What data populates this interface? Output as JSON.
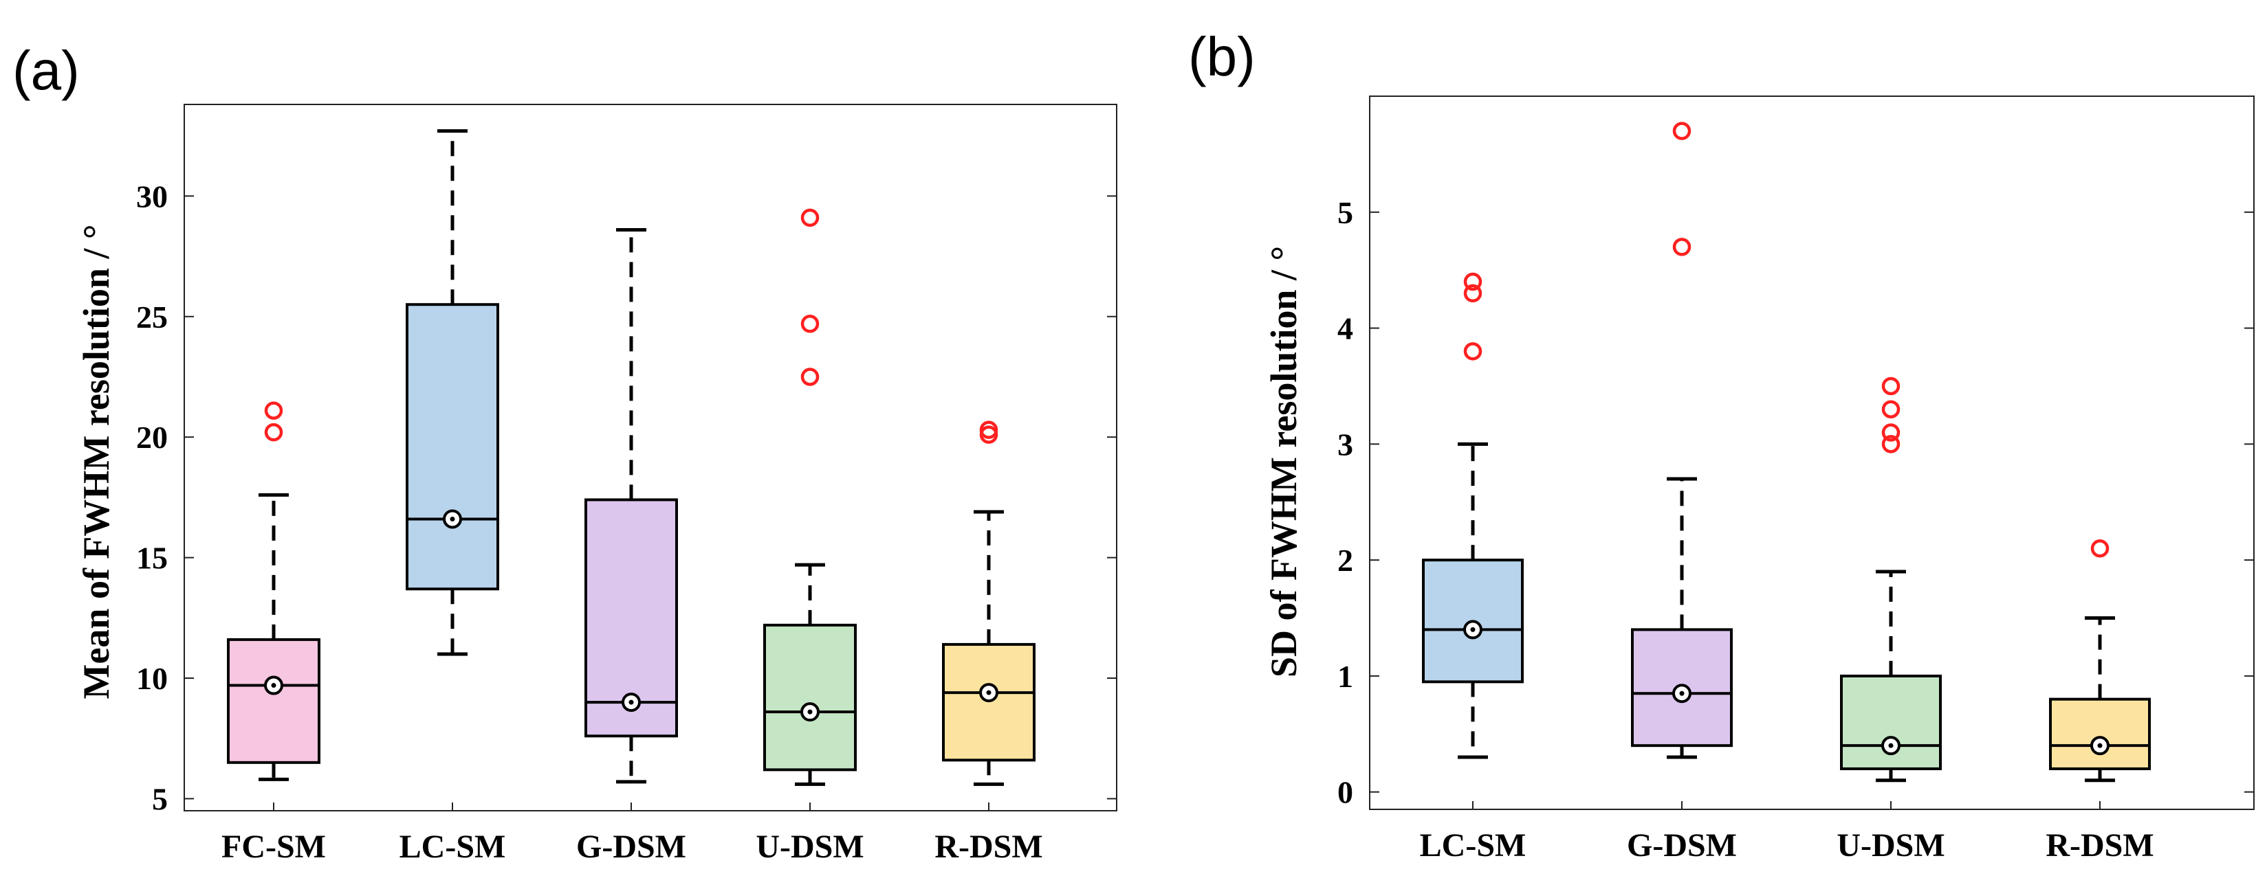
{
  "chart_data": [
    {
      "type": "box",
      "panel_label": "(a)",
      "ylabel": "Mean of FWHM resolution / °",
      "xlabel": "",
      "ylim": [
        4.5,
        33.8
      ],
      "yticks": [
        5,
        10,
        15,
        20,
        25,
        30
      ],
      "categories": [
        "FC-SM",
        "LC-SM",
        "G-DSM",
        "U-DSM",
        "R-DSM"
      ],
      "boxes": [
        {
          "name": "FC-SM",
          "color": "#F7C6E0",
          "whisker_low": 5.8,
          "q1": 6.5,
          "median": 9.7,
          "q3": 11.6,
          "whisker_high": 17.6,
          "mean": 9.7,
          "outliers": [
            20.2,
            21.1
          ]
        },
        {
          "name": "LC-SM",
          "color": "#B8D4EC",
          "whisker_low": 11.0,
          "q1": 13.7,
          "median": 16.6,
          "q3": 25.5,
          "whisker_high": 32.7,
          "mean": 16.6,
          "outliers": []
        },
        {
          "name": "G-DSM",
          "color": "#DCC6EE",
          "whisker_low": 5.7,
          "q1": 7.6,
          "median": 9.0,
          "q3": 17.4,
          "whisker_high": 28.6,
          "mean": 9.0,
          "outliers": []
        },
        {
          "name": "U-DSM",
          "color": "#C5E6C4",
          "whisker_low": 5.6,
          "q1": 6.2,
          "median": 8.6,
          "q3": 12.2,
          "whisker_high": 14.7,
          "mean": 8.6,
          "outliers": [
            22.5,
            24.7,
            29.1
          ]
        },
        {
          "name": "R-DSM",
          "color": "#FCE4A0",
          "whisker_low": 5.6,
          "q1": 6.6,
          "median": 9.4,
          "q3": 11.4,
          "whisker_high": 16.9,
          "mean": 9.4,
          "outliers": [
            20.1,
            20.3
          ]
        }
      ]
    },
    {
      "type": "box",
      "panel_label": "(b)",
      "ylabel": "SD of FWHM resolution / °",
      "xlabel": "",
      "ylim": [
        -0.15,
        6.0
      ],
      "yticks": [
        0,
        1,
        2,
        3,
        4,
        5
      ],
      "categories": [
        "LC-SM",
        "G-DSM",
        "U-DSM",
        "R-DSM"
      ],
      "boxes": [
        {
          "name": "LC-SM",
          "color": "#B8D4EC",
          "whisker_low": 0.3,
          "q1": 0.95,
          "median": 1.4,
          "q3": 2.0,
          "whisker_high": 3.0,
          "mean": 1.4,
          "outliers": [
            3.8,
            4.3,
            4.4
          ]
        },
        {
          "name": "G-DSM",
          "color": "#DCC6EE",
          "whisker_low": 0.3,
          "q1": 0.4,
          "median": 0.85,
          "q3": 1.4,
          "whisker_high": 2.7,
          "mean": 0.85,
          "outliers": [
            4.7,
            5.7
          ]
        },
        {
          "name": "U-DSM",
          "color": "#C5E6C4",
          "whisker_low": 0.1,
          "q1": 0.2,
          "median": 0.4,
          "q3": 1.0,
          "whisker_high": 1.9,
          "mean": 0.4,
          "outliers": [
            3.0,
            3.1,
            3.3,
            3.5
          ]
        },
        {
          "name": "R-DSM",
          "color": "#FCE4A0",
          "whisker_low": 0.1,
          "q1": 0.2,
          "median": 0.4,
          "q3": 0.8,
          "whisker_high": 1.5,
          "mean": 0.4,
          "outliers": [
            2.1
          ]
        }
      ]
    }
  ],
  "style": {
    "outlier_color": "#FF2020",
    "line_color": "#000000"
  }
}
